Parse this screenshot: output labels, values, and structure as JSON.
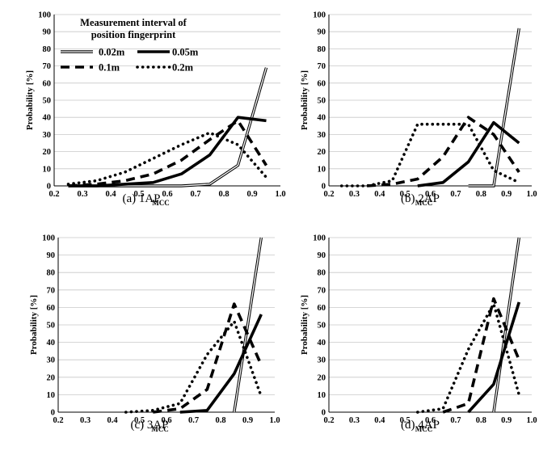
{
  "legend": {
    "title_line1": "Measurement interval of",
    "title_line2": "position fingerprint"
  },
  "chart_data": [
    {
      "type": "line",
      "caption": "(a) 1AP",
      "xlabel": "MCC",
      "ylabel": "Probability [%]",
      "xlim": [
        0.2,
        1.0
      ],
      "ylim": [
        0,
        100
      ],
      "xticks": [
        "0.2",
        "0.3",
        "0.4",
        "0.5",
        "0.6",
        "0.7",
        "0.8",
        "0.9",
        "1.0"
      ],
      "yticks": [
        "0",
        "10",
        "20",
        "30",
        "40",
        "50",
        "60",
        "70",
        "80",
        "90",
        "100"
      ],
      "grid": "horizontal",
      "legend_position": "top-left",
      "series": [
        {
          "name": "0.02m",
          "x": [
            0.25,
            0.35,
            0.45,
            0.55,
            0.65,
            0.75,
            0.85,
            0.95
          ],
          "y": [
            0,
            0,
            0,
            0,
            0,
            1,
            12,
            69
          ]
        },
        {
          "name": "0.05m",
          "x": [
            0.25,
            0.35,
            0.45,
            0.55,
            0.65,
            0.75,
            0.85,
            0.95
          ],
          "y": [
            0,
            0,
            1,
            2,
            7,
            18,
            40,
            38
          ]
        },
        {
          "name": "0.1m",
          "x": [
            0.25,
            0.35,
            0.45,
            0.55,
            0.65,
            0.75,
            0.85,
            0.95
          ],
          "y": [
            0,
            1,
            3,
            7,
            15,
            27,
            38,
            12
          ]
        },
        {
          "name": "0.2m",
          "x": [
            0.25,
            0.35,
            0.45,
            0.55,
            0.65,
            0.75,
            0.85,
            0.95
          ],
          "y": [
            1,
            3,
            8,
            16,
            24,
            31,
            24,
            5
          ]
        }
      ]
    },
    {
      "type": "line",
      "caption": "(b) 2AP",
      "xlabel": "MCC",
      "ylabel": "Probability [%]",
      "xlim": [
        0.2,
        1.0
      ],
      "ylim": [
        0,
        100
      ],
      "xticks": [
        "0.2",
        "0.3",
        "0.4",
        "0.5",
        "0.6",
        "0.7",
        "0.8",
        "0.9",
        "1.0"
      ],
      "yticks": [
        "0",
        "10",
        "20",
        "30",
        "40",
        "50",
        "60",
        "70",
        "80",
        "90",
        "100"
      ],
      "grid": "horizontal",
      "series": [
        {
          "name": "0.02m",
          "x": [
            0.75,
            0.85,
            0.95
          ],
          "y": [
            0,
            0,
            92
          ]
        },
        {
          "name": "0.05m",
          "x": [
            0.55,
            0.65,
            0.75,
            0.85,
            0.95
          ],
          "y": [
            0,
            2,
            14,
            37,
            25
          ]
        },
        {
          "name": "0.1m",
          "x": [
            0.35,
            0.45,
            0.55,
            0.65,
            0.75,
            0.85,
            0.95
          ],
          "y": [
            0,
            1,
            4,
            17,
            40,
            30,
            8
          ]
        },
        {
          "name": "0.2m",
          "x": [
            0.25,
            0.35,
            0.45,
            0.55,
            0.65,
            0.75,
            0.85,
            0.95
          ],
          "y": [
            0,
            0,
            3,
            36,
            36,
            36,
            9,
            2
          ]
        }
      ]
    },
    {
      "type": "line",
      "caption": "(c) 3AP",
      "xlabel": "MCC",
      "ylabel": "Probability [%]",
      "xlim": [
        0.2,
        1.0
      ],
      "ylim": [
        0,
        100
      ],
      "xticks": [
        "0.2",
        "0.3",
        "0.4",
        "0.5",
        "0.6",
        "0.7",
        "0.8",
        "0.9",
        "1.0"
      ],
      "yticks": [
        "0",
        "10",
        "20",
        "30",
        "40",
        "50",
        "60",
        "70",
        "80",
        "90",
        "100"
      ],
      "grid": "horizontal",
      "series": [
        {
          "name": "0.02m",
          "x": [
            0.85,
            0.95
          ],
          "y": [
            0,
            100
          ]
        },
        {
          "name": "0.05m",
          "x": [
            0.65,
            0.75,
            0.85,
            0.95
          ],
          "y": [
            0,
            1,
            22,
            56
          ]
        },
        {
          "name": "0.1m",
          "x": [
            0.55,
            0.65,
            0.75,
            0.85,
            0.95
          ],
          "y": [
            0,
            2,
            13,
            62,
            27
          ]
        },
        {
          "name": "0.2m",
          "x": [
            0.45,
            0.55,
            0.65,
            0.75,
            0.85,
            0.95
          ],
          "y": [
            0,
            1,
            5,
            33,
            52,
            9
          ]
        }
      ]
    },
    {
      "type": "line",
      "caption": "(d) 4AP",
      "xlabel": "MCC",
      "ylabel": "Probability [%]",
      "xlim": [
        0.2,
        1.0
      ],
      "ylim": [
        0,
        100
      ],
      "xticks": [
        "0.2",
        "0.3",
        "0.4",
        "0.5",
        "0.6",
        "0.7",
        "0.8",
        "0.9",
        "1.0"
      ],
      "yticks": [
        "0",
        "10",
        "20",
        "30",
        "40",
        "50",
        "60",
        "70",
        "80",
        "90",
        "100"
      ],
      "grid": "horizontal",
      "series": [
        {
          "name": "0.02m",
          "x": [
            0.85,
            0.95
          ],
          "y": [
            0,
            100
          ]
        },
        {
          "name": "0.05m",
          "x": [
            0.75,
            0.85,
            0.95
          ],
          "y": [
            0,
            16,
            63
          ]
        },
        {
          "name": "0.1m",
          "x": [
            0.65,
            0.75,
            0.85,
            0.95
          ],
          "y": [
            0,
            5,
            65,
            30
          ]
        },
        {
          "name": "0.2m",
          "x": [
            0.55,
            0.65,
            0.75,
            0.85,
            0.95
          ],
          "y": [
            0,
            2,
            36,
            62,
            10
          ]
        }
      ]
    }
  ]
}
